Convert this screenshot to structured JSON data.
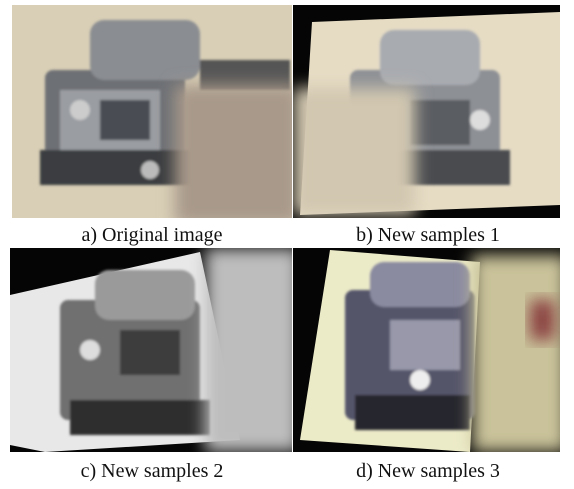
{
  "figure": {
    "panels": [
      {
        "caption": "a) Original image"
      },
      {
        "caption": "b) New samples 1"
      },
      {
        "caption": "c) New samples 2"
      },
      {
        "caption": "d) New samples 3"
      }
    ]
  }
}
